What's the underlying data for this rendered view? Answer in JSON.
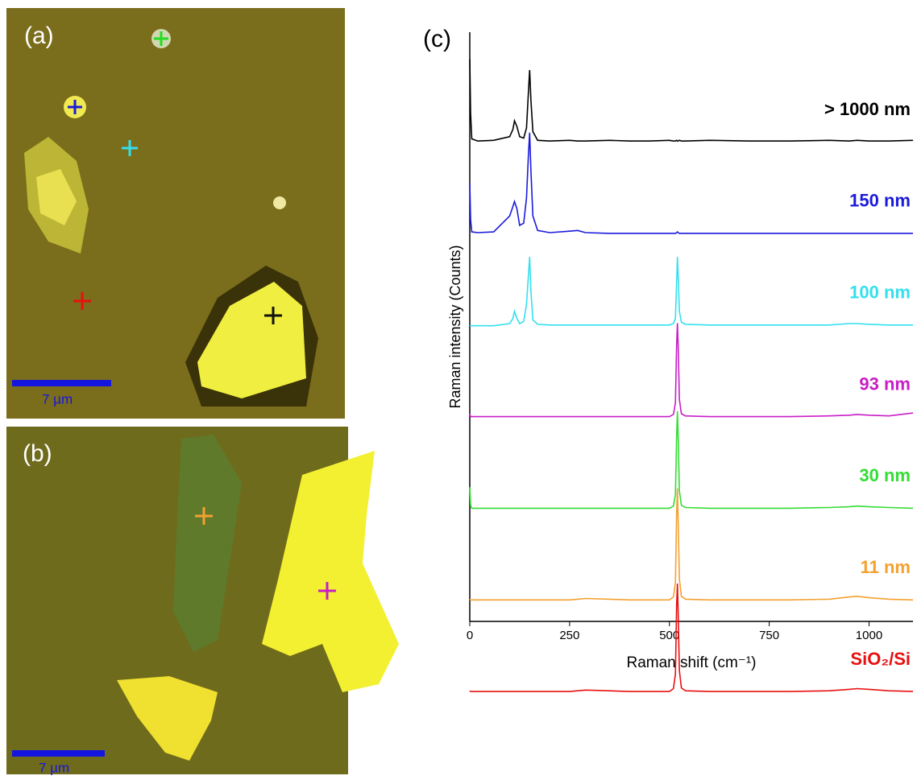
{
  "panels": {
    "a": {
      "label": "(a)",
      "scale": "7 µm"
    },
    "b": {
      "label": "(b)",
      "scale": "7 µm"
    }
  },
  "chart_data": {
    "type": "line",
    "panel_label": "(c)",
    "x_label": "Raman shift (cm⁻¹)",
    "y_label": "Raman intensity (Counts)",
    "xlim": [
      0,
      1110
    ],
    "xticks": [
      0,
      250,
      500,
      750,
      1000
    ],
    "x": [
      0,
      2,
      5,
      20,
      60,
      100,
      108,
      112,
      118,
      125,
      135,
      142,
      147,
      150,
      153,
      158,
      170,
      200,
      250,
      270,
      290,
      350,
      400,
      450,
      500,
      510,
      515,
      518,
      520,
      522,
      525,
      530,
      540,
      600,
      700,
      800,
      900,
      950,
      970,
      1000,
      1050,
      1110
    ],
    "series": [
      {
        "name": "> 1000 nm",
        "color": "#000000",
        "values": [
          115,
          40,
          5,
          2,
          3,
          8,
          18,
          30,
          22,
          8,
          6,
          20,
          70,
          100,
          60,
          15,
          3,
          2,
          3,
          2,
          2,
          3,
          2,
          2,
          3,
          2,
          2,
          3,
          2,
          2,
          3,
          2,
          2,
          3,
          2,
          2,
          3,
          2,
          3,
          2,
          2,
          3
        ]
      },
      {
        "name": "150 nm",
        "color": "#1a1adc",
        "values": [
          70,
          20,
          3,
          2,
          3,
          25,
          38,
          45,
          35,
          12,
          15,
          50,
          110,
          140,
          90,
          25,
          5,
          2,
          4,
          5,
          2,
          1,
          1,
          1,
          1,
          1,
          1,
          2,
          3,
          2,
          1,
          1,
          1,
          1,
          1,
          1,
          1,
          1,
          1,
          1,
          1,
          1
        ]
      },
      {
        "name": "100 nm",
        "color": "#33e0ee",
        "values": [
          0,
          0,
          0,
          0,
          0,
          3,
          10,
          20,
          10,
          3,
          6,
          30,
          70,
          95,
          50,
          8,
          2,
          1,
          1,
          1,
          1,
          1,
          1,
          1,
          1,
          3,
          10,
          60,
          95,
          70,
          20,
          5,
          2,
          1,
          1,
          1,
          1,
          3,
          3,
          2,
          1,
          1
        ]
      },
      {
        "name": "93 nm",
        "color": "#c81ec8",
        "values": [
          5,
          1,
          1,
          1,
          1,
          1,
          1,
          1,
          1,
          1,
          1,
          1,
          1,
          1,
          1,
          1,
          1,
          1,
          1,
          1,
          1,
          1,
          1,
          1,
          1,
          4,
          20,
          100,
          130,
          100,
          25,
          5,
          2,
          1,
          1,
          1,
          2,
          3,
          4,
          3,
          2,
          6
        ]
      },
      {
        "name": "30 nm",
        "color": "#33dd33",
        "values": [
          30,
          5,
          1,
          1,
          1,
          1,
          1,
          1,
          1,
          1,
          1,
          1,
          1,
          1,
          1,
          1,
          1,
          1,
          1,
          1,
          1,
          1,
          1,
          1,
          1,
          4,
          20,
          100,
          135,
          100,
          25,
          5,
          2,
          1,
          1,
          1,
          2,
          3,
          4,
          3,
          2,
          1
        ]
      },
      {
        "name": "11 nm",
        "color": "#f5a030",
        "values": [
          2,
          1,
          1,
          1,
          1,
          1,
          1,
          1,
          1,
          1,
          1,
          1,
          1,
          1,
          1,
          1,
          1,
          1,
          1,
          2,
          3,
          2,
          1,
          1,
          1,
          5,
          25,
          120,
          155,
          110,
          30,
          6,
          2,
          1,
          1,
          1,
          2,
          5,
          6,
          4,
          2,
          1
        ]
      },
      {
        "name": "SiO₂/Si",
        "color": "#e81010",
        "values": [
          2,
          1,
          1,
          1,
          1,
          1,
          1,
          1,
          1,
          1,
          1,
          1,
          1,
          1,
          1,
          1,
          1,
          1,
          1,
          2,
          3,
          2,
          1,
          1,
          1,
          5,
          25,
          120,
          150,
          110,
          30,
          6,
          2,
          1,
          1,
          1,
          2,
          4,
          5,
          4,
          2,
          1
        ]
      }
    ]
  }
}
